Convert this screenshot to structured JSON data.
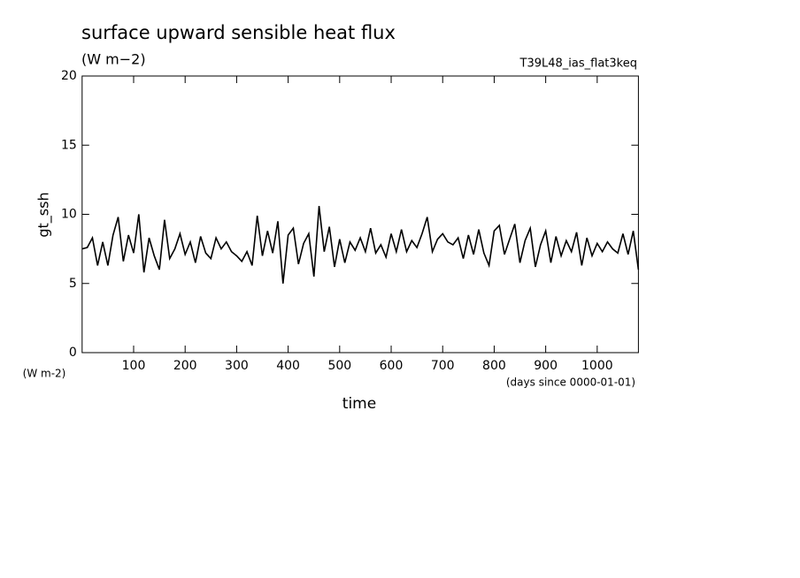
{
  "chart_data": {
    "type": "line",
    "title": "surface upward sensible heat flux",
    "subtitle": "(W m−2)",
    "annotation": "T39L48_ias_flat3keq",
    "y_label": "gt_ssh",
    "y_units": "(W m-2)",
    "x_label": "time",
    "x_units": "(days since 0000-01-01)",
    "x": [
      0,
      10,
      20,
      30,
      40,
      50,
      60,
      70,
      80,
      90,
      100,
      110,
      120,
      130,
      140,
      150,
      160,
      170,
      180,
      190,
      200,
      210,
      220,
      230,
      240,
      250,
      260,
      270,
      280,
      290,
      300,
      310,
      320,
      330,
      340,
      350,
      360,
      370,
      380,
      390,
      400,
      410,
      420,
      430,
      440,
      450,
      460,
      470,
      480,
      490,
      500,
      510,
      520,
      530,
      540,
      550,
      560,
      570,
      580,
      590,
      600,
      610,
      620,
      630,
      640,
      650,
      660,
      670,
      680,
      690,
      700,
      710,
      720,
      730,
      740,
      750,
      760,
      770,
      780,
      790,
      800,
      810,
      820,
      830,
      840,
      850,
      860,
      870,
      880,
      890,
      900,
      910,
      920,
      930,
      940,
      950,
      960,
      970,
      980,
      990,
      1000,
      1010,
      1020,
      1030,
      1040,
      1050,
      1060,
      1070,
      1080
    ],
    "series": [
      {
        "color": "#000000",
        "values": [
          7.5,
          7.6,
          8.3,
          6.3,
          8.0,
          6.3,
          8.5,
          9.8,
          6.6,
          8.5,
          7.2,
          10.0,
          5.8,
          8.3,
          7.0,
          6.0,
          9.6,
          6.8,
          7.5,
          8.6,
          7.1,
          8.0,
          6.5,
          8.4,
          7.2,
          6.8,
          8.3,
          7.5,
          8.0,
          7.3,
          7.0,
          6.6,
          7.3,
          6.3,
          9.9,
          7.0,
          8.8,
          7.2,
          9.5,
          5.0,
          8.5,
          9.0,
          6.4,
          7.9,
          8.6,
          5.5,
          10.6,
          7.3,
          9.1,
          6.2,
          8.2,
          6.5,
          8.0,
          7.4,
          8.3,
          7.3,
          9.0,
          7.2,
          7.8,
          6.9,
          8.6,
          7.3,
          8.9,
          7.3,
          8.1,
          7.6,
          8.6,
          9.8,
          7.3,
          8.2,
          8.6,
          8.0,
          7.8,
          8.3,
          6.8,
          8.5,
          7.1,
          8.9,
          7.2,
          6.3,
          8.8,
          9.2,
          7.1,
          8.2,
          9.3,
          6.5,
          8.1,
          9.0,
          6.2,
          7.8,
          8.8,
          6.5,
          8.4,
          7.0,
          8.1,
          7.3,
          8.7,
          6.3,
          8.3,
          7.0,
          7.9,
          7.3,
          8.0,
          7.5,
          7.2,
          8.6,
          7.1,
          8.8,
          6.0
        ]
      }
    ],
    "xlim": [
      0,
      1080
    ],
    "xticks": [
      100,
      200,
      300,
      400,
      500,
      600,
      700,
      800,
      900,
      1000
    ],
    "ylim": [
      0,
      20
    ],
    "yticks": [
      0,
      5,
      10,
      15,
      20
    ]
  }
}
